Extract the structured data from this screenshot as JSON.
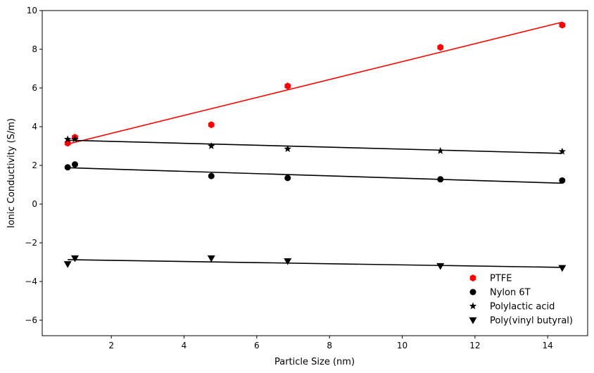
{
  "chart_data": {
    "type": "scatter",
    "xlabel": "Particle Size (nm)",
    "ylabel": "Ionic Conductivity (S/m)",
    "xlim": [
      0.1,
      15.1
    ],
    "ylim": [
      -6.8,
      10
    ],
    "xticks": [
      2,
      4,
      6,
      8,
      10,
      12,
      14
    ],
    "yticks": [
      -6,
      -4,
      -2,
      0,
      2,
      4,
      6,
      8,
      10
    ],
    "tick_labels_x": [
      "2",
      "4",
      "6",
      "8",
      "10",
      "12",
      "14"
    ],
    "tick_labels_y": [
      "−6",
      "−4",
      "−2",
      "0",
      "2",
      "4",
      "6",
      "8",
      "10"
    ],
    "x": [
      0.8,
      1.0,
      4.75,
      6.85,
      11.05,
      14.4
    ],
    "series": [
      {
        "name": "PTFE",
        "color": "#ff0000",
        "marker": "hexagon",
        "values": [
          3.15,
          3.45,
          4.1,
          6.1,
          8.1,
          9.25
        ],
        "fit": [
          3.1,
          9.4
        ]
      },
      {
        "name": "Nylon 6T",
        "color": "#000000",
        "marker": "circle",
        "values": [
          1.9,
          2.05,
          1.45,
          1.35,
          1.28,
          1.22
        ],
        "fit": [
          1.88,
          1.08
        ]
      },
      {
        "name": "Polylactic acid",
        "color": "#000000",
        "marker": "star",
        "values": [
          3.35,
          3.35,
          3.0,
          2.85,
          2.75,
          2.72
        ],
        "fit": [
          3.3,
          2.62
        ]
      },
      {
        "name": "Poly(vinyl butyral)",
        "color": "#000000",
        "marker": "triangle-down",
        "values": [
          -3.1,
          -2.8,
          -2.8,
          -2.95,
          -3.2,
          -3.3
        ],
        "fit": [
          -2.87,
          -3.27
        ]
      }
    ],
    "legend": "lower-right",
    "grid": false
  }
}
